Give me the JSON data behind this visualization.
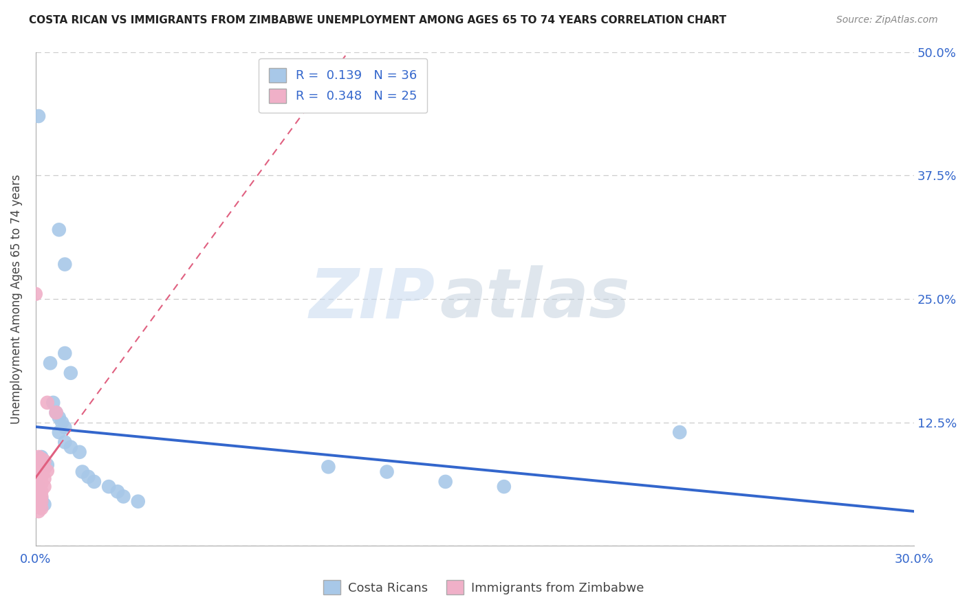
{
  "title": "COSTA RICAN VS IMMIGRANTS FROM ZIMBABWE UNEMPLOYMENT AMONG AGES 65 TO 74 YEARS CORRELATION CHART",
  "source": "Source: ZipAtlas.com",
  "ylabel": "Unemployment Among Ages 65 to 74 years",
  "xlim": [
    0.0,
    0.3
  ],
  "ylim": [
    0.0,
    0.5
  ],
  "xticks": [
    0.0,
    0.05,
    0.1,
    0.15,
    0.2,
    0.25,
    0.3
  ],
  "xticklabels": [
    "0.0%",
    "",
    "",
    "",
    "",
    "",
    "30.0%"
  ],
  "yticks": [
    0.0,
    0.125,
    0.25,
    0.375,
    0.5
  ],
  "yticklabels_right": [
    "",
    "12.5%",
    "25.0%",
    "37.5%",
    "50.0%"
  ],
  "blue_R": "0.139",
  "blue_N": "36",
  "pink_R": "0.348",
  "pink_N": "25",
  "blue_color": "#a8c8e8",
  "pink_color": "#f0b0c8",
  "blue_line_color": "#3366cc",
  "pink_line_color": "#e06080",
  "blue_scatter": [
    [
      0.001,
      0.435
    ],
    [
      0.008,
      0.32
    ],
    [
      0.01,
      0.285
    ],
    [
      0.01,
      0.195
    ],
    [
      0.012,
      0.175
    ],
    [
      0.005,
      0.185
    ],
    [
      0.006,
      0.145
    ],
    [
      0.007,
      0.135
    ],
    [
      0.008,
      0.13
    ],
    [
      0.009,
      0.125
    ],
    [
      0.01,
      0.12
    ],
    [
      0.008,
      0.115
    ],
    [
      0.01,
      0.105
    ],
    [
      0.012,
      0.1
    ],
    [
      0.015,
      0.095
    ],
    [
      0.002,
      0.09
    ],
    [
      0.003,
      0.085
    ],
    [
      0.004,
      0.082
    ],
    [
      0.016,
      0.075
    ],
    [
      0.018,
      0.07
    ],
    [
      0.02,
      0.065
    ],
    [
      0.025,
      0.06
    ],
    [
      0.028,
      0.055
    ],
    [
      0.03,
      0.05
    ],
    [
      0.035,
      0.045
    ],
    [
      0.1,
      0.08
    ],
    [
      0.12,
      0.075
    ],
    [
      0.14,
      0.065
    ],
    [
      0.16,
      0.06
    ],
    [
      0.22,
      0.115
    ],
    [
      0.001,
      0.06
    ],
    [
      0.001,
      0.055
    ],
    [
      0.001,
      0.05
    ],
    [
      0.002,
      0.048
    ],
    [
      0.002,
      0.045
    ],
    [
      0.003,
      0.042
    ]
  ],
  "pink_scatter": [
    [
      0.0,
      0.255
    ],
    [
      0.004,
      0.145
    ],
    [
      0.007,
      0.135
    ],
    [
      0.001,
      0.09
    ],
    [
      0.002,
      0.088
    ],
    [
      0.003,
      0.086
    ],
    [
      0.001,
      0.082
    ],
    [
      0.002,
      0.08
    ],
    [
      0.003,
      0.078
    ],
    [
      0.004,
      0.076
    ],
    [
      0.001,
      0.072
    ],
    [
      0.002,
      0.07
    ],
    [
      0.003,
      0.068
    ],
    [
      0.001,
      0.065
    ],
    [
      0.002,
      0.063
    ],
    [
      0.003,
      0.06
    ],
    [
      0.001,
      0.057
    ],
    [
      0.002,
      0.055
    ],
    [
      0.001,
      0.052
    ],
    [
      0.002,
      0.05
    ],
    [
      0.001,
      0.048
    ],
    [
      0.002,
      0.045
    ],
    [
      0.001,
      0.042
    ],
    [
      0.002,
      0.038
    ],
    [
      0.001,
      0.035
    ]
  ],
  "watermark_zip": "ZIP",
  "watermark_atlas": "atlas",
  "legend_labels": [
    "Costa Ricans",
    "Immigrants from Zimbabwe"
  ],
  "grid_color": "#cccccc",
  "background_color": "#ffffff"
}
